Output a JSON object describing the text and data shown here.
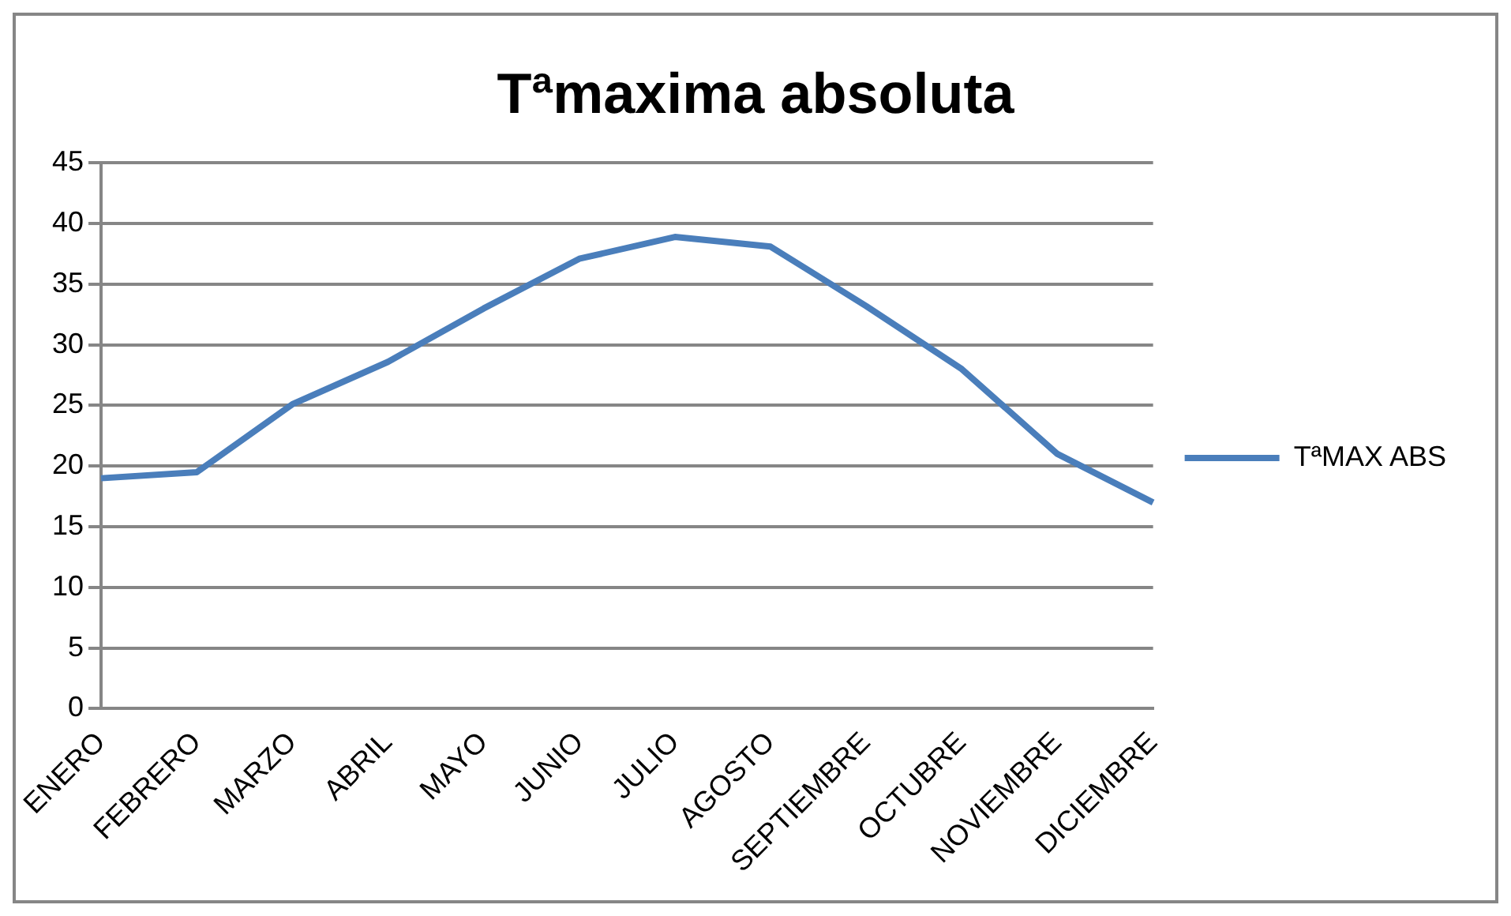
{
  "chart_data": {
    "type": "line",
    "title": "Tªmaxima absoluta",
    "categories": [
      "ENERO",
      "FEBRERO",
      "MARZO",
      "ABRIL",
      "MAYO",
      "JUNIO",
      "JULIO",
      "AGOSTO",
      "SEPTIEMBRE",
      "OCTUBRE",
      "NOVIEMBRE",
      "DICIEMBRE"
    ],
    "series": [
      {
        "name": "TªMAX ABS",
        "color": "#4a7ebb",
        "values": [
          19,
          19.5,
          25.1,
          28.6,
          33,
          37.1,
          38.9,
          38.1,
          33.2,
          28,
          21,
          17
        ]
      }
    ],
    "ylim": [
      0,
      45
    ],
    "yticks": [
      0,
      5,
      10,
      15,
      20,
      25,
      30,
      35,
      40,
      45
    ],
    "grid": "y",
    "legend": "right",
    "marker": "none"
  }
}
